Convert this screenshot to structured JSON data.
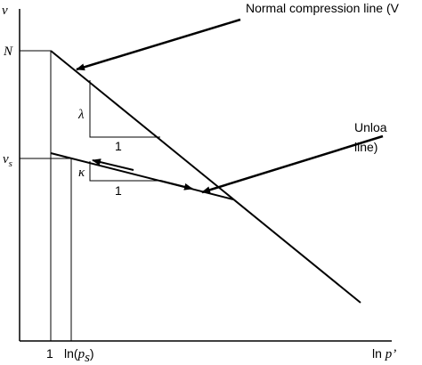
{
  "axes": {
    "y_label": "v",
    "x_label_ln": "ln",
    "x_label_p": "p’"
  },
  "levels": {
    "N": "N",
    "vs_main": "v",
    "vs_sub": "s"
  },
  "x_ticks": {
    "one": "1",
    "lnps_open": "ln(",
    "lnps_p": "p",
    "lnps_sub": "s",
    "lnps_close": ")"
  },
  "slopes": {
    "lambda": "λ",
    "lambda_run": "1",
    "kappa": "κ",
    "kappa_run": "1"
  },
  "annotations": {
    "ncl": "Normal compression line (V",
    "unload_1": "Unloa",
    "unload_2": "line)"
  }
}
